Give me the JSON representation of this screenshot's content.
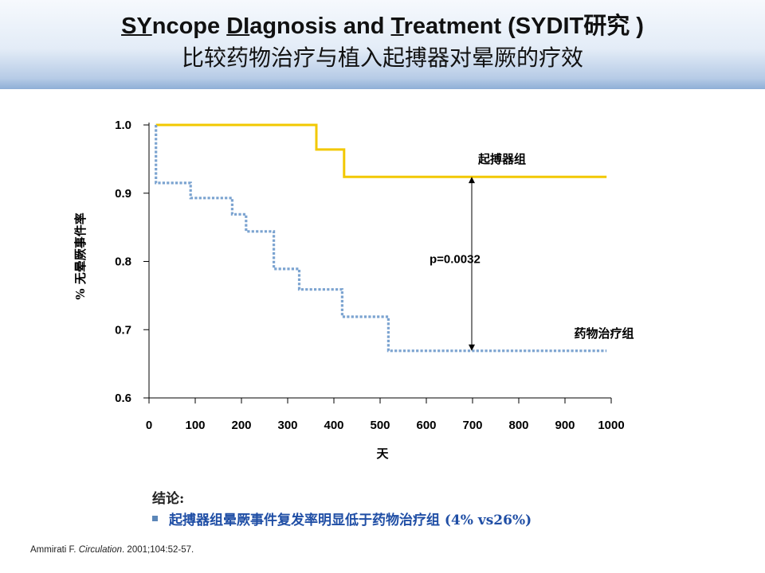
{
  "header": {
    "title_en_parts": [
      {
        "text": "SY",
        "u": true
      },
      {
        "text": "ncope ",
        "u": false
      },
      {
        "text": "DI",
        "u": true
      },
      {
        "text": "agnosis and ",
        "u": false
      },
      {
        "text": "T",
        "u": true
      },
      {
        "text": "reatment (SYDIT研究 )",
        "u": false
      }
    ],
    "subtitle": "比较药物治疗与植入起搏器对晕厥的疗效"
  },
  "conclusion": {
    "label": "结论:",
    "bullet": "起搏器组晕厥事件复发率明显低于药物治疗组 (4% vs26%)"
  },
  "citation": {
    "author": "Ammirati F. ",
    "journal": "Circulation",
    "details": ". 2001;104:52-57."
  },
  "colors": {
    "pacemaker_line": "#f2c800",
    "drug_line": "#7ba3d0",
    "conclusion_text": "#1f4ea5"
  },
  "chart_data": {
    "type": "line",
    "title": "",
    "xlabel": "天",
    "ylabel": "% 无晕厥事件率",
    "xlim": [
      0,
      1000
    ],
    "ylim": [
      0.6,
      1.0
    ],
    "x_ticks": [
      0,
      100,
      200,
      300,
      400,
      500,
      600,
      700,
      800,
      900,
      1000
    ],
    "y_ticks": [
      0.6,
      0.7,
      0.8,
      0.9,
      1.0
    ],
    "y_tick_labels": [
      "0.6",
      "0.7",
      "0.8",
      "0.9",
      "1.0"
    ],
    "grid": false,
    "step": true,
    "series": [
      {
        "name": "起搏器组",
        "style": "solid",
        "points": [
          [
            15,
            1.0
          ],
          [
            362,
            1.0
          ],
          [
            362,
            0.964
          ],
          [
            422,
            0.964
          ],
          [
            422,
            0.924
          ],
          [
            990,
            0.924
          ]
        ]
      },
      {
        "name": "药物治疗组",
        "style": "dotted",
        "points": [
          [
            15,
            1.0
          ],
          [
            15,
            0.915
          ],
          [
            90,
            0.915
          ],
          [
            90,
            0.893
          ],
          [
            180,
            0.893
          ],
          [
            180,
            0.869
          ],
          [
            210,
            0.869
          ],
          [
            210,
            0.844
          ],
          [
            270,
            0.844
          ],
          [
            270,
            0.789
          ],
          [
            325,
            0.789
          ],
          [
            325,
            0.759
          ],
          [
            418,
            0.759
          ],
          [
            418,
            0.719
          ],
          [
            518,
            0.719
          ],
          [
            518,
            0.669
          ],
          [
            990,
            0.669
          ]
        ]
      }
    ],
    "annotations": [
      {
        "text": "p=0.0032",
        "x": 700,
        "y1": 0.924,
        "y2": 0.669
      }
    ]
  }
}
